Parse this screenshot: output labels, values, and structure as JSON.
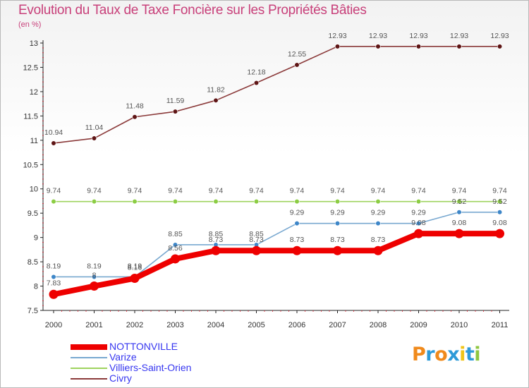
{
  "header": {
    "title": "Evolution du Taux de Taxe Foncière sur les Propriétés Bâties",
    "unit": "(en %)"
  },
  "logo": {
    "text": "Proxiti",
    "letters": [
      {
        "ch": "P",
        "color": "#f08a1c"
      },
      {
        "ch": "r",
        "color": "#2d9ad8"
      },
      {
        "ch": "o",
        "color": "#f08a1c"
      },
      {
        "ch": "x",
        "color": "#2d9ad8"
      },
      {
        "ch": "i",
        "color": "#f0c419"
      },
      {
        "ch": "t",
        "color": "#2d9ad8"
      },
      {
        "ch": "i",
        "color": "#8dc63f"
      }
    ]
  },
  "chart_data": {
    "type": "line",
    "title": "Evolution du Taux de Taxe Foncière sur les Propriétés Bâties",
    "ylabel": "(en %)",
    "xlabel": "",
    "categories": [
      "2000",
      "2001",
      "2002",
      "2003",
      "2004",
      "2005",
      "2006",
      "2007",
      "2008",
      "2009",
      "2010",
      "2011"
    ],
    "ylim": [
      7.5,
      13
    ],
    "yticks": [
      "7.5",
      "8",
      "8.5",
      "9",
      "9.5",
      "10",
      "10.5",
      "11",
      "11.5",
      "12",
      "12.5",
      "13"
    ],
    "grid": false,
    "legend_position": "bottom-left",
    "series": [
      {
        "name": "NOTTONVILLE",
        "color": "#ee0000",
        "width": "thick",
        "values": [
          7.83,
          8,
          8.16,
          8.56,
          8.73,
          8.73,
          8.73,
          8.73,
          8.73,
          9.08,
          9.08,
          9.08
        ],
        "labels": [
          "7.83",
          "8",
          "8.16",
          "8.56",
          "8.73",
          "8.73",
          "8.73",
          "8.73",
          "8.73",
          "9.08",
          "9.08",
          "9.08"
        ]
      },
      {
        "name": "Varize",
        "color": "#78a8d0",
        "marker": "#3d86c8",
        "width": "thin",
        "values": [
          8.19,
          8.19,
          8.19,
          8.85,
          8.85,
          8.85,
          9.29,
          9.29,
          9.29,
          9.29,
          9.52,
          9.52
        ],
        "labels": [
          "8.19",
          "8.19",
          "8.19",
          "8.85",
          "8.85",
          "8.85",
          "9.29",
          "9.29",
          "9.29",
          "9.29",
          "9.52",
          "9.52"
        ]
      },
      {
        "name": "Villiers-Saint-Orien",
        "color": "#9ed35e",
        "marker": "#8ccd44",
        "width": "thin",
        "values": [
          9.74,
          9.74,
          9.74,
          9.74,
          9.74,
          9.74,
          9.74,
          9.74,
          9.74,
          9.74,
          9.74,
          9.74
        ],
        "labels": [
          "9.74",
          "9.74",
          "9.74",
          "9.74",
          "9.74",
          "9.74",
          "9.74",
          "9.74",
          "9.74",
          "9.74",
          "9.74",
          "9.74"
        ]
      },
      {
        "name": "Civry",
        "color": "#8b3a3a",
        "marker": "#5e1515",
        "width": "thin",
        "values": [
          10.94,
          11.04,
          11.48,
          11.59,
          11.82,
          12.18,
          12.55,
          12.93,
          12.93,
          12.93,
          12.93,
          12.93
        ],
        "labels": [
          "10.94",
          "11.04",
          "11.48",
          "11.59",
          "11.82",
          "12.18",
          "12.55",
          "12.93",
          "12.93",
          "12.93",
          "12.93",
          "12.93"
        ]
      }
    ]
  }
}
